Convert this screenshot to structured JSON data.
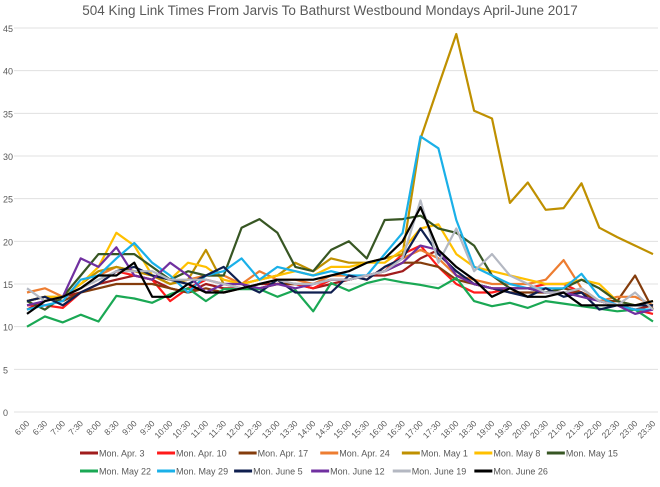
{
  "chart_data": {
    "type": "line",
    "title": "504 King Link Times From Jarvis To Bathurst Westbound Mondays April-June 2017",
    "xlabel": "",
    "ylabel": "",
    "ylim": [
      0,
      45
    ],
    "yticks": [
      0,
      5,
      10,
      15,
      20,
      25,
      30,
      35,
      40,
      45
    ],
    "grid": true,
    "legend_position": "bottom",
    "x": [
      "6:00",
      "6:30",
      "7:00",
      "7:30",
      "8:00",
      "8:30",
      "9:00",
      "9:30",
      "10:00",
      "10:30",
      "11:00",
      "11:30",
      "12:00",
      "12:30",
      "13:00",
      "13:30",
      "14:00",
      "14:30",
      "15:00",
      "15:30",
      "16:00",
      "16:30",
      "17:00",
      "17:30",
      "18:00",
      "18:30",
      "19:00",
      "19:30",
      "20:00",
      "20:30",
      "21:00",
      "21:30",
      "22:00",
      "22:30",
      "23:00",
      "23:30"
    ],
    "series": [
      {
        "name": "Mon. Apr. 3",
        "color": "#a01c1c",
        "values": [
          12,
          13,
          13.5,
          14,
          15,
          15.5,
          16,
          15.5,
          14.5,
          14,
          15,
          14.5,
          14.5,
          15,
          15,
          15,
          14.5,
          15,
          15.5,
          16,
          16,
          16.5,
          18,
          19,
          16,
          15,
          14.5,
          14.5,
          14.5,
          14,
          14,
          14,
          13,
          12.5,
          12,
          12.5
        ]
      },
      {
        "name": "Mon. Apr. 10",
        "color": "#ff1a1a",
        "values": [
          12.5,
          12.5,
          12.2,
          14,
          15,
          16.5,
          16,
          15.5,
          13,
          14.5,
          15.5,
          15,
          14.5,
          14.5,
          15,
          15,
          14.5,
          15.5,
          15.5,
          16,
          16.5,
          18.5,
          19.5,
          17,
          15,
          14,
          14,
          14.5,
          14.5,
          15,
          15,
          14,
          13,
          12.5,
          12,
          11.5
        ]
      },
      {
        "name": "Mon. Apr. 17",
        "color": "#843c0c",
        "values": [
          13,
          13.5,
          13,
          14,
          14.5,
          15,
          15,
          15,
          14.5,
          14,
          14.5,
          14,
          14.5,
          14.5,
          15,
          15,
          15,
          15.5,
          15.5,
          16,
          16.5,
          17.5,
          17.5,
          17,
          15.5,
          15,
          14.5,
          14,
          14,
          14,
          14.5,
          14,
          13,
          13,
          16,
          12
        ]
      },
      {
        "name": "Mon. Apr. 24",
        "color": "#ed7d31",
        "values": [
          14,
          14.5,
          13.5,
          14.5,
          16,
          17,
          16.5,
          16,
          15,
          15.5,
          16,
          16,
          15,
          16.5,
          15.5,
          15.5,
          15,
          16,
          16,
          15.5,
          17,
          18,
          19,
          18,
          16,
          15.5,
          15,
          15,
          15,
          15.5,
          17.8,
          14.5,
          13,
          13.5,
          13.5,
          12.5
        ]
      },
      {
        "name": "Mon. May 1",
        "color": "#bf9000",
        "values": [
          13,
          13.5,
          13.5,
          15,
          16.5,
          17,
          16.5,
          16,
          15,
          15.5,
          19,
          15,
          15,
          15.5,
          16,
          17.5,
          16.5,
          18,
          17.5,
          17.5,
          18,
          18.5,
          32,
          38.2,
          44.3,
          35.3,
          34.4,
          24.5,
          26.9,
          23.7,
          23.9,
          26.8,
          21.6,
          20.5,
          19.5,
          18.5
        ]
      },
      {
        "name": "Mon. May 8",
        "color": "#ffc000",
        "values": [
          13,
          13.5,
          13.5,
          15,
          17,
          21,
          19.5,
          16,
          15.5,
          17.5,
          17,
          15.5,
          15,
          15.5,
          16,
          16.5,
          16,
          17,
          17,
          17.5,
          17.5,
          19,
          21.5,
          22,
          18.5,
          17,
          16.5,
          16,
          15.5,
          15,
          15,
          15.5,
          15,
          13,
          12.5,
          13
        ]
      },
      {
        "name": "Mon. May 15",
        "color": "#375623",
        "values": [
          13,
          12,
          13.5,
          16,
          18.5,
          18.5,
          18.5,
          17,
          15.5,
          16.5,
          16,
          16,
          21.6,
          22.6,
          21,
          17,
          16.5,
          19,
          20,
          18,
          22.5,
          22.6,
          23,
          21.5,
          21,
          19.5,
          16,
          14.5,
          14.5,
          14,
          14.5,
          15.5,
          14.5,
          13,
          12.5,
          12.5
        ]
      },
      {
        "name": "Mon. May 22",
        "color": "#1aa854",
        "values": [
          10,
          11.2,
          10.5,
          11.4,
          10.6,
          13.6,
          13.3,
          12.8,
          13.8,
          14.5,
          13,
          14.4,
          14.4,
          14.4,
          13.5,
          14.3,
          11.8,
          15.1,
          14.2,
          15.1,
          15.6,
          15.2,
          14.9,
          14.5,
          15.7,
          13,
          12.4,
          12.8,
          12.2,
          13,
          12.7,
          12.4,
          12.1,
          11.8,
          12,
          10.6
        ]
      },
      {
        "name": "Mon. May 29",
        "color": "#1ab0e8",
        "values": [
          12,
          12.5,
          13,
          15.5,
          16,
          18,
          19.8,
          17.5,
          16,
          14,
          16,
          16.5,
          18,
          15.5,
          17,
          16.5,
          16,
          16.5,
          16,
          16,
          18.5,
          21,
          32.3,
          30.9,
          22.5,
          17,
          16,
          15,
          14.5,
          14.5,
          14.5,
          16.2,
          13.5,
          12.5,
          12,
          12
        ]
      },
      {
        "name": "Mon. June 5",
        "color": "#0f1f4f",
        "values": [
          13,
          13.5,
          12.5,
          14,
          15,
          16.5,
          17,
          16,
          15.5,
          15,
          16,
          17,
          15,
          14,
          15.5,
          14,
          14,
          14,
          16,
          15.5,
          17,
          18,
          21.5,
          18.5,
          16.5,
          15,
          14.5,
          14,
          13.5,
          14.5,
          13.5,
          14,
          12,
          12.5,
          12.5,
          12.5
        ]
      },
      {
        "name": "Mon. June 12",
        "color": "#7030a0",
        "values": [
          12.5,
          13,
          13.5,
          18,
          17,
          19.3,
          16,
          15.5,
          17.5,
          16,
          14,
          15,
          15,
          14.5,
          15,
          14.5,
          15,
          15.5,
          15.5,
          16,
          16.5,
          17.5,
          19.5,
          19,
          16,
          15,
          14.5,
          14.5,
          14.5,
          14,
          14,
          13.5,
          13,
          12.5,
          11.5,
          12
        ]
      },
      {
        "name": "Mon. June 19",
        "color": "#b4b8c2",
        "values": [
          14.5,
          13,
          13.5,
          14.5,
          15.5,
          16.5,
          16.5,
          16.5,
          15.5,
          15.5,
          15.5,
          15,
          14.5,
          15,
          15.5,
          15,
          15,
          15.5,
          15.5,
          16,
          16.5,
          18,
          24.8,
          17.5,
          21.5,
          16.5,
          18.5,
          16,
          15,
          14,
          14,
          14.5,
          13,
          12.5,
          14,
          12
        ]
      },
      {
        "name": "Mon. June 26",
        "color": "#000000",
        "values": [
          11.5,
          13,
          13.5,
          14.5,
          16,
          16,
          17.5,
          13.5,
          13.5,
          15,
          14,
          14,
          14.5,
          15,
          15.5,
          15.5,
          15.5,
          16,
          16.5,
          17.5,
          18,
          20,
          24,
          19,
          17,
          15.5,
          13.5,
          14.5,
          13.5,
          13.5,
          14,
          12.5,
          12.5,
          12.5,
          12.5,
          13
        ]
      }
    ]
  }
}
